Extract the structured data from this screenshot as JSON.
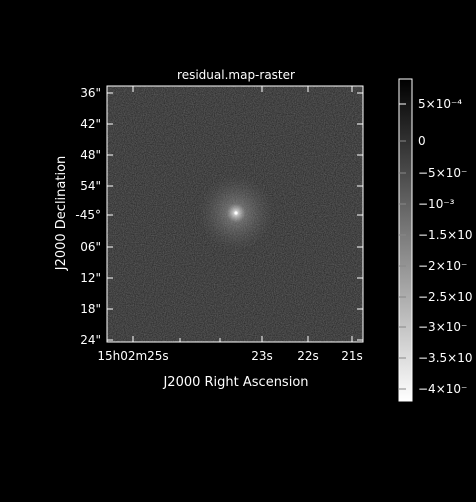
{
  "image": {
    "title": "residual.map-raster",
    "xlabel": "J2000 Right Ascension",
    "ylabel": "J2000 Declination",
    "dec_ticks": [
      {
        "text": "36\""
      },
      {
        "text": "42\""
      },
      {
        "text": "48\""
      },
      {
        "text": "54\""
      },
      {
        "text": "-45°"
      },
      {
        "text": "06\""
      },
      {
        "text": "12\""
      },
      {
        "text": "18\""
      },
      {
        "text": "24\""
      }
    ],
    "ra_ticks": [
      {
        "text": "15h02m25s"
      },
      {
        "text": "23s"
      },
      {
        "text": "22s"
      },
      {
        "text": "21s"
      }
    ]
  },
  "colorbar": {
    "labels": [
      {
        "text": "5×10⁻⁴"
      },
      {
        "text": "0"
      },
      {
        "text": "−5×10⁻"
      },
      {
        "text": "−10⁻³"
      },
      {
        "text": "−1.5×10"
      },
      {
        "text": "−2×10⁻"
      },
      {
        "text": "−2.5×10"
      },
      {
        "text": "−3×10⁻"
      },
      {
        "text": "−3.5×10"
      },
      {
        "text": "−4×10⁻"
      }
    ],
    "colors": {
      "background": "#000000",
      "frame": "#ffffff",
      "text": "#ffffff"
    }
  }
}
